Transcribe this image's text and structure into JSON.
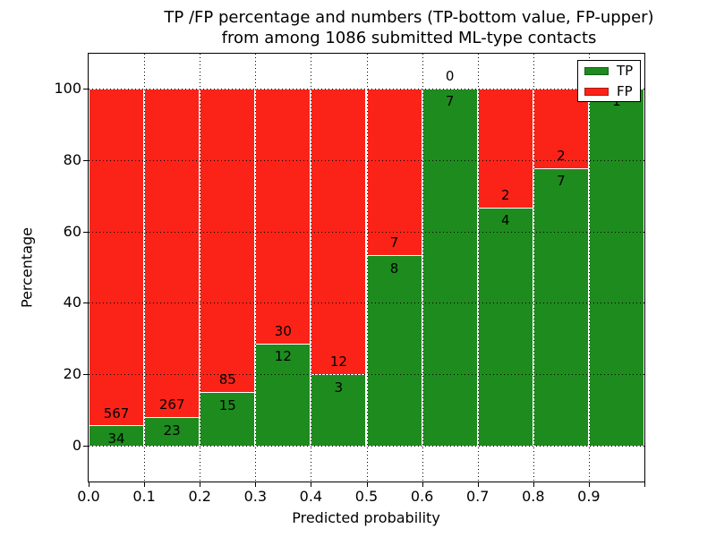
{
  "chart_data": {
    "type": "bar",
    "subtype": "stacked-percentage",
    "title_line1": "TP /FP percentage and numbers (TP-bottom value, FP-upper)",
    "title_line2": "from among 1086 submitted ML-type contacts",
    "total_contacts": 1086,
    "xlabel": "Predicted probability",
    "ylabel": "Percentage",
    "x_tick_labels": [
      "0.0",
      "0.1",
      "0.2",
      "0.3",
      "0.4",
      "0.5",
      "0.6",
      "0.7",
      "0.8",
      "0.9"
    ],
    "y_ticks": [
      0,
      20,
      40,
      60,
      80,
      100
    ],
    "y_tick_labels": [
      "0",
      "20",
      "40",
      "60",
      "80",
      "100"
    ],
    "ylim": [
      -10,
      110
    ],
    "grid": "dotted",
    "legend": {
      "position": "upper-right",
      "entries": [
        {
          "label": "TP",
          "color": "#1e8b1e"
        },
        {
          "label": "FP",
          "color": "#fb2318"
        }
      ]
    },
    "colors": {
      "tp": "#1e8b1e",
      "fp": "#fb2318",
      "bar_edge": "#ffffff"
    },
    "bins": [
      {
        "x_range": [
          0.0,
          0.1
        ],
        "tp": 34,
        "fp": 567
      },
      {
        "x_range": [
          0.1,
          0.2
        ],
        "tp": 23,
        "fp": 267
      },
      {
        "x_range": [
          0.2,
          0.3
        ],
        "tp": 15,
        "fp": 85
      },
      {
        "x_range": [
          0.3,
          0.4
        ],
        "tp": 12,
        "fp": 30
      },
      {
        "x_range": [
          0.4,
          0.5
        ],
        "tp": 3,
        "fp": 12
      },
      {
        "x_range": [
          0.5,
          0.6
        ],
        "tp": 8,
        "fp": 7
      },
      {
        "x_range": [
          0.6,
          0.7
        ],
        "tp": 7,
        "fp": 0
      },
      {
        "x_range": [
          0.7,
          0.8
        ],
        "tp": 4,
        "fp": 2
      },
      {
        "x_range": [
          0.8,
          0.9
        ],
        "tp": 7,
        "fp": 2
      },
      {
        "x_range": [
          0.9,
          1.0
        ],
        "tp": 1,
        "fp": 0
      }
    ]
  }
}
